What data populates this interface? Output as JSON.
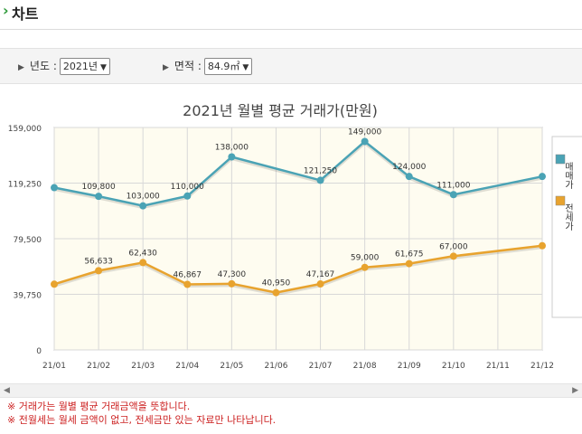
{
  "header": {
    "title": "차트",
    "chevron": "chevron-right-icon"
  },
  "filters": {
    "year_label": "년도 :",
    "year_value": "2021년",
    "area_label": "면적 :",
    "area_value": "84.9㎡"
  },
  "chart_data": {
    "type": "line",
    "title": "2021년 월별 평균 거래가(만원)",
    "categories": [
      "21/01",
      "21/02",
      "21/03",
      "21/04",
      "21/05",
      "21/06",
      "21/07",
      "21/08",
      "21/09",
      "21/10",
      "21/11",
      "21/12"
    ],
    "ylim": [
      0,
      159000
    ],
    "yticks": [
      0,
      39750,
      79500,
      119250,
      159000
    ],
    "ytick_labels": [
      "0",
      "39,750",
      "79,500",
      "119,250",
      "159,000"
    ],
    "grid": true,
    "legend_position": "right",
    "series": [
      {
        "name": "매매가",
        "color": "#4aa3b5",
        "values": [
          116000,
          109800,
          103000,
          110000,
          138000,
          null,
          121250,
          149000,
          124000,
          111000,
          null,
          124000
        ],
        "labels": [
          "",
          "109,800",
          "103,000",
          "110,000",
          "138,000",
          "",
          "121,250",
          "149,000",
          "124,000",
          "111,000",
          "",
          ""
        ]
      },
      {
        "name": "전세가",
        "color": "#e8a32e",
        "values": [
          47000,
          56633,
          62430,
          46867,
          47300,
          40950,
          47167,
          59000,
          61675,
          67000,
          null,
          74500
        ],
        "labels": [
          "",
          "56,633",
          "62,430",
          "46,867",
          "47,300",
          "40,950",
          "47,167",
          "59,000",
          "61,675",
          "67,000",
          "",
          ""
        ]
      }
    ]
  },
  "notes": [
    "※ 거래가는 월별 평균 거래금액을 뜻합니다.",
    "※ 전월세는 월세 금액이 없고, 전세금만 있는 자료만 나타납니다."
  ]
}
